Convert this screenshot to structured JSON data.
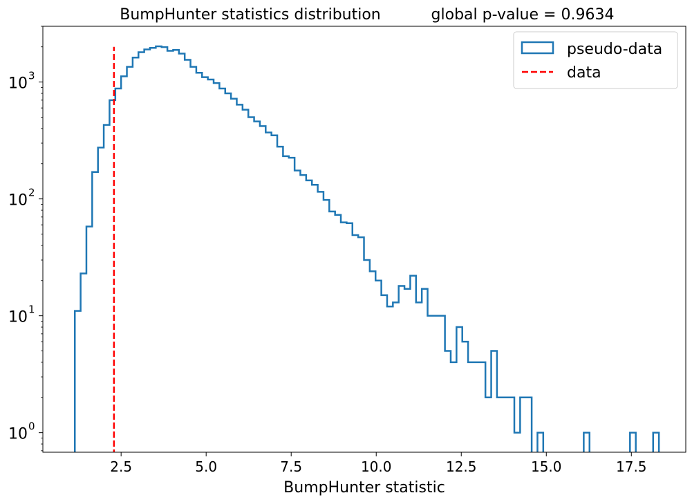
{
  "chart_data": {
    "type": "histogram",
    "title": "BumpHunter statistics distribution",
    "title_right": "global p-value = 0.9634",
    "xlabel": "BumpHunter statistic",
    "ylabel": "",
    "y_scale": "log",
    "xlim": [
      0.2,
      19.1
    ],
    "ylim": [
      0.68,
      3000
    ],
    "x_ticks": [
      2.5,
      5.0,
      7.5,
      10.0,
      12.5,
      15.0,
      17.5
    ],
    "x_tick_labels": [
      "2.5",
      "5.0",
      "7.5",
      "10.0",
      "12.5",
      "15.0",
      "17.5"
    ],
    "y_ticks": [
      1,
      10,
      100,
      1000
    ],
    "y_tick_bases": [
      "10",
      "10",
      "10",
      "10"
    ],
    "y_tick_exponents": [
      "0",
      "1",
      "2",
      "3"
    ],
    "grid": false,
    "legend_position": "top-right",
    "legend": [
      {
        "label": "pseudo-data",
        "style": "step",
        "color": "#1f77b4"
      },
      {
        "label": "data",
        "style": "dashed",
        "color": "#ff0000"
      }
    ],
    "data_line": {
      "name": "data",
      "x": 2.29,
      "y_top": 2000,
      "color": "#ff0000"
    },
    "series": [
      {
        "name": "pseudo-data",
        "color": "#1f77b4",
        "bin_edges": [
          1.14,
          1.31,
          1.48,
          1.65,
          1.82,
          1.99,
          2.16,
          2.33,
          2.5,
          2.67,
          2.84,
          3.01,
          3.18,
          3.35,
          3.52,
          3.69,
          3.86,
          4.03,
          4.2,
          4.37,
          4.54,
          4.71,
          4.88,
          5.05,
          5.22,
          5.39,
          5.56,
          5.73,
          5.9,
          6.07,
          6.24,
          6.41,
          6.58,
          6.75,
          6.92,
          7.09,
          7.26,
          7.43,
          7.6,
          7.77,
          7.94,
          8.11,
          8.28,
          8.45,
          8.62,
          8.79,
          8.96,
          9.13,
          9.3,
          9.47,
          9.64,
          9.81,
          9.98,
          10.15,
          10.32,
          10.49,
          10.66,
          10.83,
          11.0,
          11.17,
          11.34,
          11.51,
          11.68,
          11.85,
          12.02,
          12.19,
          12.36,
          12.53,
          12.7,
          12.87,
          13.04,
          13.21,
          13.38,
          13.55,
          13.72,
          13.89,
          14.06,
          14.23,
          14.4,
          14.57,
          14.74,
          14.91,
          15.08,
          15.25,
          15.42,
          15.59,
          15.76,
          15.93,
          16.1,
          16.27,
          16.44,
          16.61,
          16.78,
          16.95,
          17.12,
          17.29,
          17.46,
          17.63,
          17.8,
          17.97,
          18.14,
          18.31
        ],
        "counts": [
          11,
          23,
          58,
          170,
          275,
          430,
          700,
          880,
          1120,
          1350,
          1620,
          1800,
          1900,
          1960,
          2020,
          1990,
          1850,
          1880,
          1750,
          1550,
          1350,
          1200,
          1100,
          1050,
          980,
          880,
          800,
          720,
          640,
          580,
          500,
          460,
          420,
          370,
          350,
          280,
          232,
          225,
          175,
          160,
          144,
          132,
          115,
          98,
          78,
          73,
          63,
          62,
          49,
          47,
          30,
          24,
          20,
          15,
          12,
          13,
          18,
          17,
          22,
          13,
          17,
          10,
          10,
          10,
          5,
          4,
          8,
          6,
          4,
          4,
          4,
          2,
          5,
          2,
          2,
          2,
          1,
          2,
          2,
          0,
          1,
          0,
          0,
          0,
          0,
          0,
          0,
          0,
          1,
          0,
          0,
          0,
          0,
          0,
          0,
          0,
          1,
          0,
          0,
          0,
          1
        ]
      }
    ]
  }
}
